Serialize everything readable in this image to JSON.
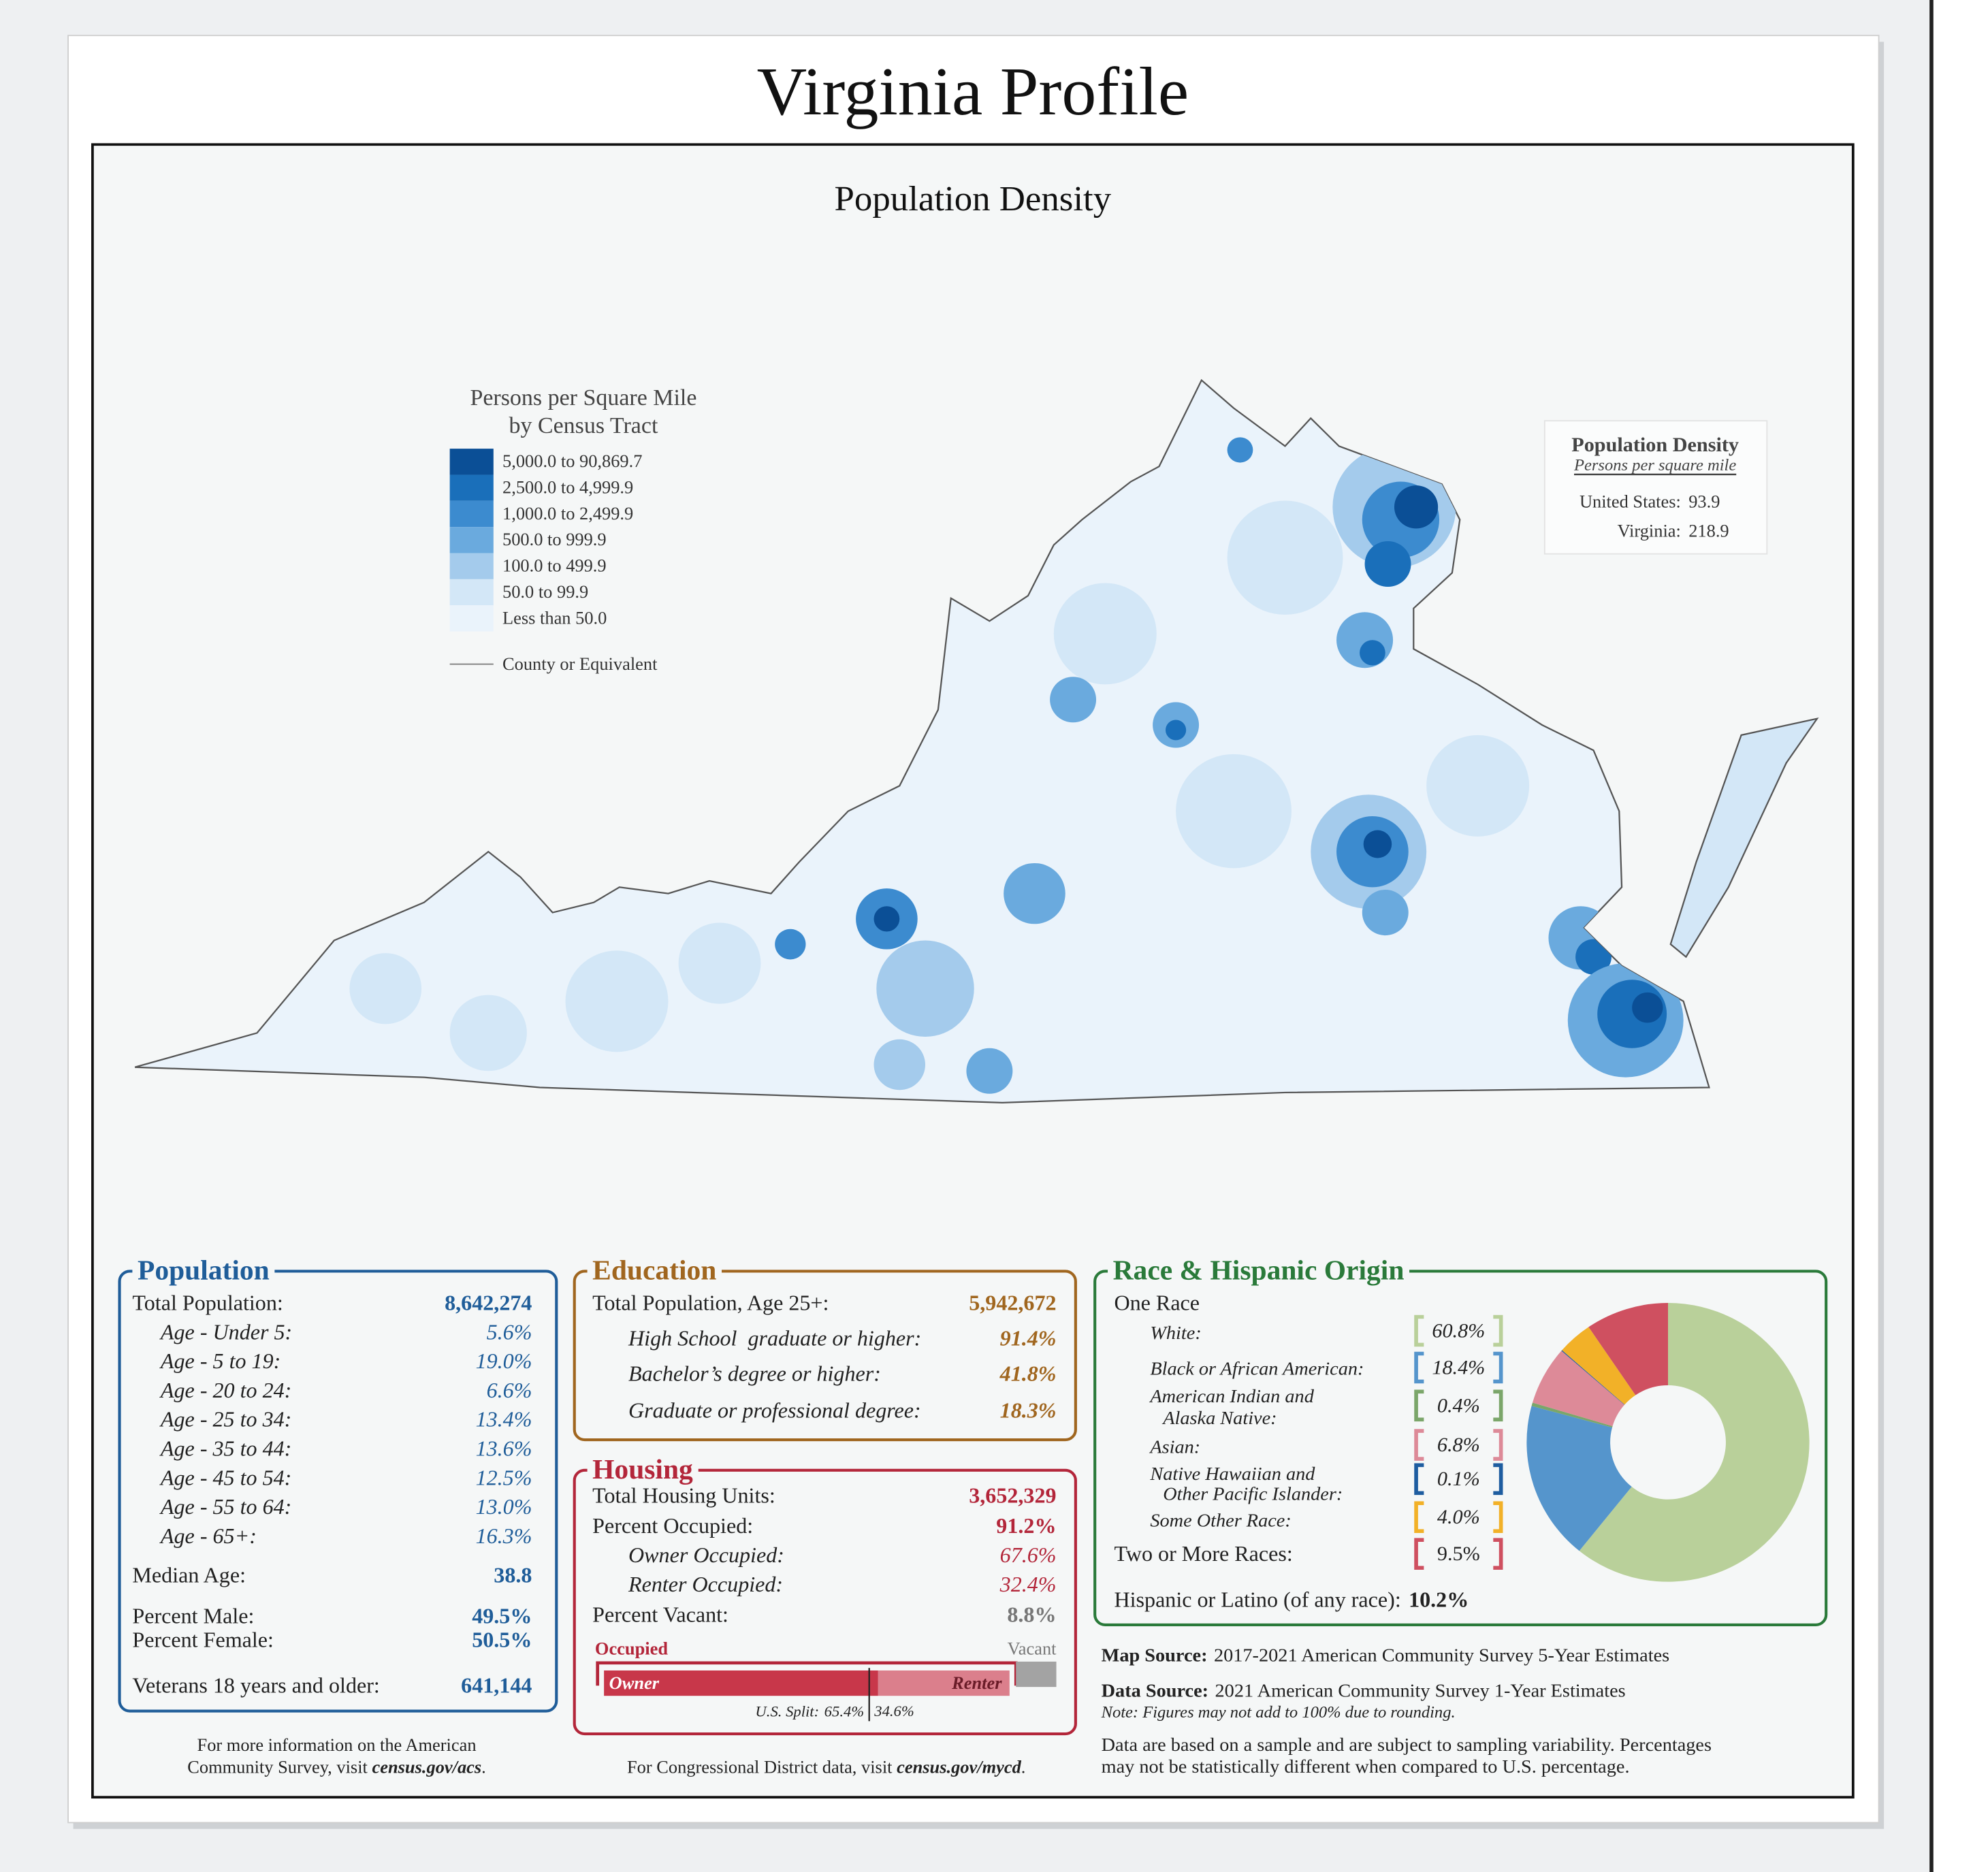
{
  "title": "Virginia Profile",
  "map": {
    "title": "Population Density",
    "legend": {
      "title": [
        "Persons per Square Mile",
        "by Census Tract"
      ],
      "items": [
        {
          "label": "5,000.0 to 90,869.7",
          "color": "#0b4f96"
        },
        {
          "label": "2,500.0 to 4,999.9",
          "color": "#1a6fba"
        },
        {
          "label": "1,000.0 to 2,499.9",
          "color": "#3c8bcf"
        },
        {
          "label": "500.0 to 999.9",
          "color": "#6aaade"
        },
        {
          "label": "100.0 to 499.9",
          "color": "#a4cbec"
        },
        {
          "label": "50.0 to 99.9",
          "color": "#d3e7f7"
        },
        {
          "label": "Less than 50.0",
          "color": "#eaf3fb"
        }
      ],
      "county_line": "County or Equivalent"
    },
    "inset": {
      "title": "Population Density",
      "subtitle": "Persons per square mile",
      "rows": [
        {
          "label": "United States:",
          "value": "93.9"
        },
        {
          "label": "Virginia:",
          "value": "218.9"
        }
      ]
    }
  },
  "population": {
    "title": "Population",
    "color": "#1f5d99",
    "rows": [
      {
        "label": "Total Population:",
        "value": "8,642,274"
      },
      {
        "label": "Age - Under 5:",
        "value": "5.6%"
      },
      {
        "label": "Age - 5 to 19:",
        "value": "19.0%"
      },
      {
        "label": "Age - 20 to 24:",
        "value": "6.6%"
      },
      {
        "label": "Age - 25 to 34:",
        "value": "13.4%"
      },
      {
        "label": "Age - 35 to 44:",
        "value": "13.6%"
      },
      {
        "label": "Age - 45 to 54:",
        "value": "12.5%"
      },
      {
        "label": "Age - 55 to 64:",
        "value": "13.0%"
      },
      {
        "label": "Age - 65+:",
        "value": "16.3%"
      },
      {
        "label": "Median Age:",
        "value": "38.8"
      },
      {
        "label": "Percent Male:",
        "value": "49.5%"
      },
      {
        "label": "Percent Female:",
        "value": "50.5%"
      },
      {
        "label": "Veterans 18 years and older:",
        "value": "641,144"
      }
    ],
    "footer": {
      "line1": "For more information on the American",
      "line2": "Community Survey, visit ",
      "link": "census.gov/acs",
      "end": "."
    }
  },
  "education": {
    "title": "Education",
    "color": "#a0661f",
    "rows": [
      {
        "label": "Total Population, Age 25+:",
        "value": "5,942,672"
      },
      {
        "label": "High School  graduate or higher:",
        "value": "91.4%"
      },
      {
        "label": "Bachelor’s degree or higher:",
        "value": "41.8%"
      },
      {
        "label": "Graduate or professional degree:",
        "value": "18.3%"
      }
    ]
  },
  "housing": {
    "title": "Housing",
    "color": "#b3263a",
    "rows": [
      {
        "label": "Total Housing Units:",
        "value": "3,652,329"
      },
      {
        "label": "Percent Occupied:",
        "value": 91.2,
        "value_label": "91.2%"
      },
      {
        "label": "Owner Occupied:",
        "value": 67.6,
        "value_label": "67.6%"
      },
      {
        "label": "Renter Occupied:",
        "value": 32.4,
        "value_label": "32.4%"
      },
      {
        "label": "Percent Vacant:",
        "value": 8.8,
        "value_label": "8.8%"
      }
    ],
    "bar": {
      "occupied_label": "Occupied",
      "vacant_label": "Vacant",
      "owner_label": "Owner",
      "renter_label": "Renter",
      "colors": {
        "owner": "#c8374a",
        "renter": "#db7f8c",
        "vacant": "#a3a3a3"
      },
      "us_split": {
        "label": "U.S. Split:",
        "owner": 65.4,
        "owner_label": "65.4%",
        "renter": 34.6,
        "renter_label": "34.6%"
      }
    },
    "footer": {
      "text": "For Congressional District data, visit ",
      "link": "census.gov/mycd",
      "end": "."
    }
  },
  "race": {
    "title": "Race & Hispanic Origin",
    "color": "#2a7a3a",
    "one_race_label": "One Race",
    "groups": [
      {
        "name": [
          "White:"
        ],
        "value": 60.8,
        "value_label": "60.8%",
        "color": "#b9d09a"
      },
      {
        "name": [
          "Black or African American:"
        ],
        "value": 18.4,
        "value_label": "18.4%",
        "color": "#5595cc"
      },
      {
        "name": [
          "American Indian and",
          "Alaska Native:"
        ],
        "value": 0.4,
        "value_label": "0.4%",
        "color": "#7ba66a"
      },
      {
        "name": [
          "Asian:"
        ],
        "value": 6.8,
        "value_label": "6.8%",
        "color": "#dd8a98"
      },
      {
        "name": [
          "Native Hawaiian and",
          "Other Pacific Islander:"
        ],
        "value": 0.1,
        "value_label": "0.1%",
        "color": "#1e5da0"
      },
      {
        "name": [
          "Some Other Race:"
        ],
        "value": 4.0,
        "value_label": "4.0%",
        "color": "#f2b128"
      },
      {
        "name": [
          "Two or More Races:"
        ],
        "value": 9.5,
        "value_label": "9.5%",
        "color": "#cf5060"
      }
    ],
    "hispanic": {
      "label": "Hispanic or Latino (of any race):",
      "value": "10.2%"
    }
  },
  "sources": {
    "map_source": {
      "label": "Map Source:",
      "text": "2017-2021 American Community Survey 5-Year Estimates"
    },
    "data_source": {
      "label": "Data Source:",
      "text": "2021 American Community Survey 1-Year Estimates"
    },
    "note": "Note: Figures may not add to 100% due to rounding.",
    "disclaimer": [
      "Data are based on a sample and are subject to sampling variability. Percentages",
      "may not be statistically different when compared to U.S. percentage."
    ]
  }
}
